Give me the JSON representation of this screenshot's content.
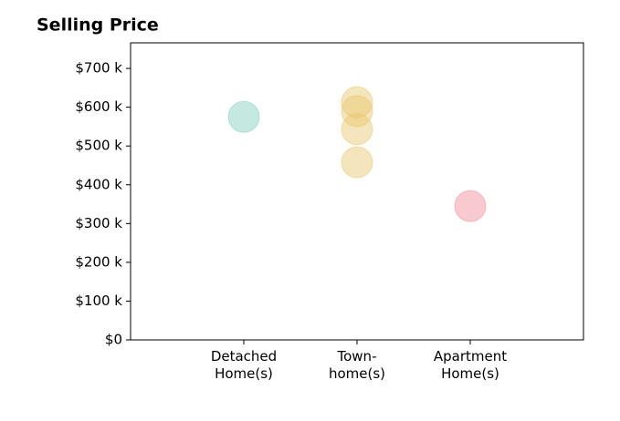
{
  "chart_data": {
    "type": "strip",
    "title": "Selling Price",
    "categories": [
      "Detached\nHome(s)",
      "Town-\nhome(s)",
      "Apartment\nHome(s)"
    ],
    "colors": [
      "#7fcdbb",
      "#e8c66a",
      "#f08a96"
    ],
    "values": [
      [
        575000
      ],
      [
        613000,
        590000,
        543000,
        458000
      ],
      [
        345000
      ]
    ],
    "ylim": [
      0,
      766000
    ],
    "yticks": [
      {
        "value": 0,
        "label": "$0"
      },
      {
        "value": 100000,
        "label": "$100 k"
      },
      {
        "value": 200000,
        "label": "$200 k"
      },
      {
        "value": 300000,
        "label": "$300 k"
      },
      {
        "value": 400000,
        "label": "$400 k"
      },
      {
        "value": 500000,
        "label": "$500 k"
      },
      {
        "value": 600000,
        "label": "$600 k"
      },
      {
        "value": 700000,
        "label": "$700 k"
      }
    ]
  }
}
